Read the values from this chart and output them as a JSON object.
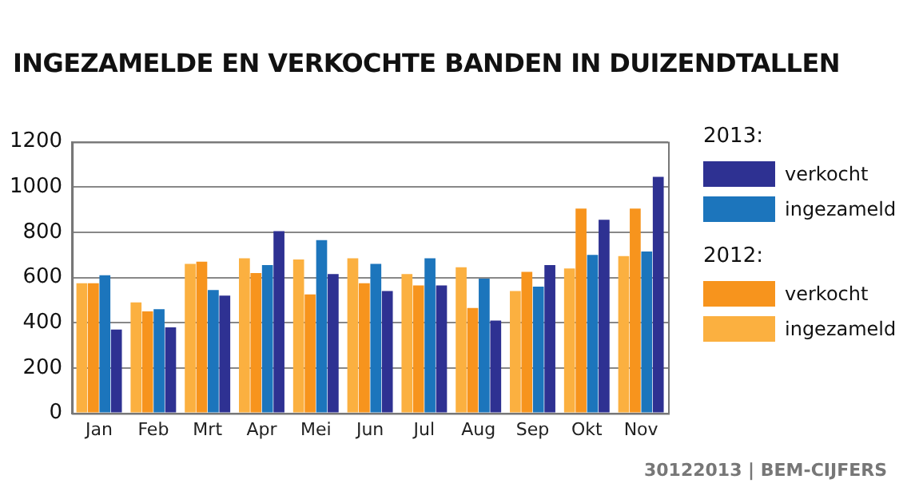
{
  "chart_data": {
    "type": "bar",
    "title": "INGEZAMELDE EN VERKOCHTE BANDEN IN DUIZENDTALLEN",
    "categories": [
      "Jan",
      "Feb",
      "Mrt",
      "Apr",
      "Mei",
      "Jun",
      "Jul",
      "Aug",
      "Sep",
      "Okt",
      "Nov"
    ],
    "series": [
      {
        "name": "ingezameld",
        "color": "#fbb040",
        "values": [
          575,
          490,
          660,
          685,
          680,
          685,
          615,
          645,
          540,
          640,
          695
        ]
      },
      {
        "name": "verkocht",
        "color": "#f7941d",
        "values": [
          575,
          450,
          670,
          620,
          525,
          575,
          565,
          465,
          625,
          905,
          905
        ]
      },
      {
        "name": "ingezameld",
        "color": "#1c75bc",
        "values": [
          610,
          460,
          545,
          655,
          765,
          660,
          685,
          595,
          560,
          700,
          715
        ]
      },
      {
        "name": "verkocht",
        "color": "#2e3192",
        "values": [
          370,
          380,
          520,
          805,
          615,
          540,
          565,
          410,
          655,
          855,
          1045
        ]
      }
    ],
    "ylim": [
      0,
      1200
    ],
    "yticks": [
      0,
      200,
      400,
      600,
      800,
      1000,
      1200
    ],
    "grid": "y",
    "legend": "right",
    "annotations": [
      "2013:",
      "2012:",
      "30122013 | BEM-CIJFERS"
    ]
  }
}
